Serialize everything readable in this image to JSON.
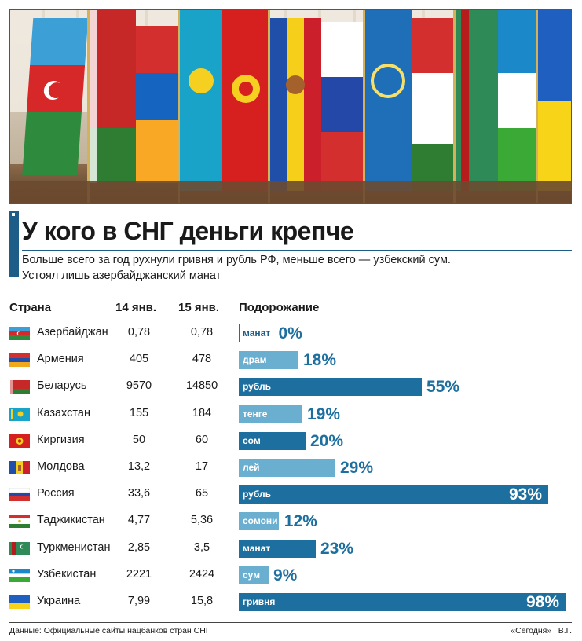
{
  "title": "У кого в СНГ деньги крепче",
  "subtitle": "Больше всего за год рухнули гривня и рубль РФ, меньше всего — узбекский сум. Устоял лишь азербайджанский манат",
  "headers": {
    "country": "Страна",
    "jan14": "14 янв.",
    "jan15": "15 янв.",
    "rise": "Подорожание"
  },
  "chart_data": {
    "type": "bar",
    "xlim": [
      0,
      100
    ],
    "rows": [
      {
        "country": "Азербайджан",
        "jan14": "0,78",
        "jan15": "0,78",
        "currency": "манат",
        "pct": 0,
        "pct_label": "0%",
        "color": "#1d6f9f"
      },
      {
        "country": "Армения",
        "jan14": "405",
        "jan15": "478",
        "currency": "драм",
        "pct": 18,
        "pct_label": "18%",
        "color": "#6aaed0"
      },
      {
        "country": "Беларусь",
        "jan14": "9570",
        "jan15": "14850",
        "currency": "рубль",
        "pct": 55,
        "pct_label": "55%",
        "color": "#1d6f9f"
      },
      {
        "country": "Казахстан",
        "jan14": "155",
        "jan15": "184",
        "currency": "тенге",
        "pct": 19,
        "pct_label": "19%",
        "color": "#6aaed0"
      },
      {
        "country": "Киргизия",
        "jan14": "50",
        "jan15": "60",
        "currency": "сом",
        "pct": 20,
        "pct_label": "20%",
        "color": "#1d6f9f"
      },
      {
        "country": "Молдова",
        "jan14": "13,2",
        "jan15": "17",
        "currency": "лей",
        "pct": 29,
        "pct_label": "29%",
        "color": "#6aaed0"
      },
      {
        "country": "Россия",
        "jan14": "33,6",
        "jan15": "65",
        "currency": "рубль",
        "pct": 93,
        "pct_label": "93%",
        "color": "#1d6f9f"
      },
      {
        "country": "Таджикистан",
        "jan14": "4,77",
        "jan15": "5,36",
        "currency": "сомони",
        "pct": 12,
        "pct_label": "12%",
        "color": "#6aaed0"
      },
      {
        "country": "Туркменистан",
        "jan14": "2,85",
        "jan15": "3,5",
        "currency": "манат",
        "pct": 23,
        "pct_label": "23%",
        "color": "#1d6f9f"
      },
      {
        "country": "Узбекистан",
        "jan14": "2221",
        "jan15": "2424",
        "currency": "сум",
        "pct": 9,
        "pct_label": "9%",
        "color": "#6aaed0"
      },
      {
        "country": "Украина",
        "jan14": "7,99",
        "jan15": "15,8",
        "currency": "гривня",
        "pct": 98,
        "pct_label": "98%",
        "color": "#1d6f9f"
      }
    ]
  },
  "footer": {
    "source": "Данные: Официальные сайты нацбанков стран СНГ",
    "credit": "«Сегодня» | В.Г."
  }
}
